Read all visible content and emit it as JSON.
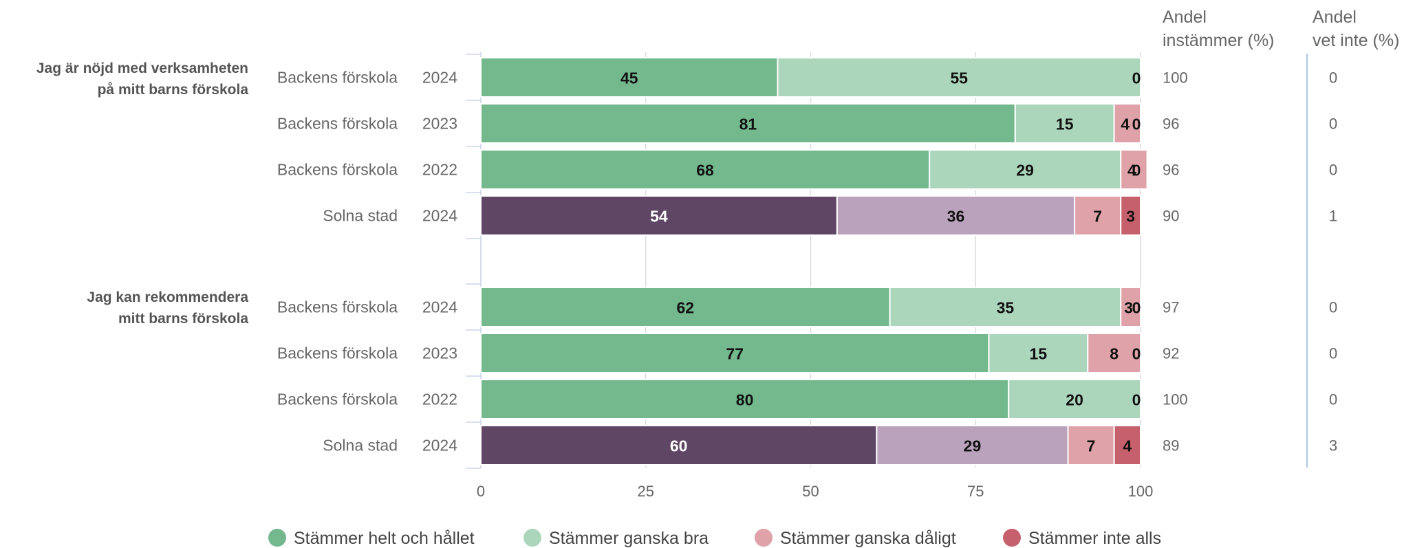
{
  "chart_data": {
    "type": "bar",
    "orientation": "horizontal",
    "stacked": true,
    "xlim": [
      0,
      100
    ],
    "xticks": [
      0,
      25,
      50,
      75,
      100
    ],
    "grid": true,
    "legend_position": "bottom",
    "legend": [
      {
        "label": "Stämmer helt och hållet",
        "color": "#74b88e"
      },
      {
        "label": "Stämmer ganska bra",
        "color": "#acd6bc"
      },
      {
        "label": "Stämmer ganska dåligt",
        "color": "#dea2a8"
      },
      {
        "label": "Stämmer inte alls",
        "color": "#c6606c"
      }
    ],
    "comparison_colors": [
      "#5e4664",
      "#baa2bc",
      "#dea2a8",
      "#c6606c"
    ],
    "column_headers": {
      "agree": [
        "Andel",
        "instämmer (%)"
      ],
      "dontknow": [
        "Andel",
        "vet inte (%)"
      ]
    },
    "groups": [
      {
        "question": [
          "Jag är nöjd med verksamheten",
          "på mitt barns förskola"
        ],
        "rows": [
          {
            "unit": "Backens förskola",
            "year": "2024",
            "values": [
              45,
              55,
              0,
              0
            ],
            "labels": [
              "45",
              "55",
              "",
              "0"
            ],
            "agree": "100",
            "dontknow": "0",
            "comparison": false
          },
          {
            "unit": "Backens förskola",
            "year": "2023",
            "values": [
              81,
              15,
              4,
              0
            ],
            "labels": [
              "81",
              "15",
              "4",
              "0"
            ],
            "agree": "96",
            "dontknow": "0",
            "comparison": false
          },
          {
            "unit": "Backens förskola",
            "year": "2022",
            "values": [
              68,
              29,
              4,
              0
            ],
            "labels": [
              "68",
              "29",
              "4",
              "0"
            ],
            "agree": "96",
            "dontknow": "0",
            "comparison": false
          },
          {
            "unit": "Solna stad",
            "year": "2024",
            "values": [
              54,
              36,
              7,
              3
            ],
            "labels": [
              "54",
              "36",
              "7",
              "3"
            ],
            "agree": "90",
            "dontknow": "1",
            "comparison": true
          }
        ]
      },
      {
        "question": [
          "Jag kan rekommendera",
          "mitt barns förskola"
        ],
        "rows": [
          {
            "unit": "Backens förskola",
            "year": "2024",
            "values": [
              62,
              35,
              3,
              0
            ],
            "labels": [
              "62",
              "35",
              "3",
              "0"
            ],
            "agree": "97",
            "dontknow": "0",
            "comparison": false
          },
          {
            "unit": "Backens förskola",
            "year": "2023",
            "values": [
              77,
              15,
              8,
              0
            ],
            "labels": [
              "77",
              "15",
              "8",
              "0"
            ],
            "agree": "92",
            "dontknow": "0",
            "comparison": false
          },
          {
            "unit": "Backens förskola",
            "year": "2022",
            "values": [
              80,
              20,
              0,
              0
            ],
            "labels": [
              "80",
              "20",
              "",
              "0"
            ],
            "agree": "100",
            "dontknow": "0",
            "comparison": false
          },
          {
            "unit": "Solna stad",
            "year": "2024",
            "values": [
              60,
              29,
              7,
              4
            ],
            "labels": [
              "60",
              "29",
              "7",
              "4"
            ],
            "agree": "89",
            "dontknow": "3",
            "comparison": true
          }
        ]
      }
    ]
  }
}
